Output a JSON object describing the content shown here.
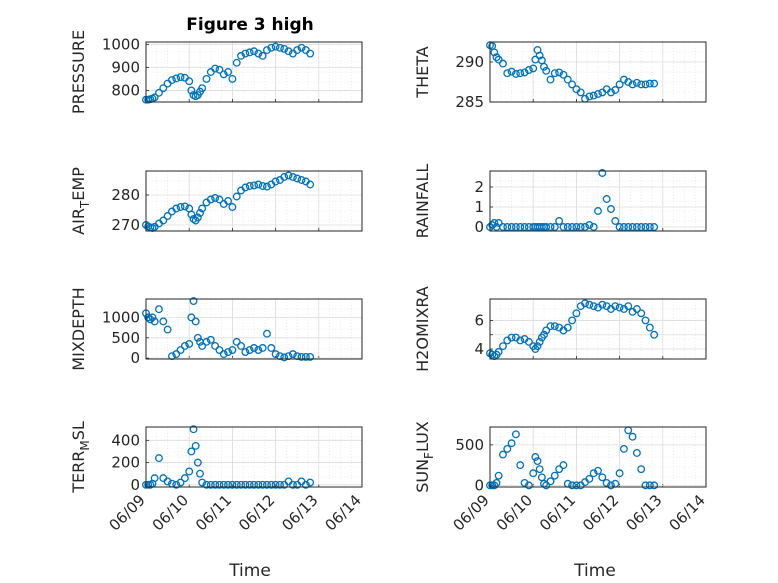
{
  "figure_title": "Figure 3 high",
  "time_label": "Time",
  "x_tick_labels": [
    "06/09",
    "06/10",
    "06/11",
    "06/12",
    "06/13",
    "06/14"
  ],
  "marker_color": "#0072BD",
  "chart_data": [
    {
      "type": "scatter",
      "id": "pressure",
      "ylabel": "PRESSURE",
      "ylabel_sub": "",
      "xlim": [
        0,
        5
      ],
      "ylim": [
        750,
        1010
      ],
      "yticks": [
        800,
        900,
        1000
      ],
      "yticklabels": [
        "800",
        "900",
        "1000"
      ],
      "x": [
        0.0,
        0.05,
        0.1,
        0.15,
        0.2,
        0.3,
        0.4,
        0.5,
        0.6,
        0.7,
        0.8,
        0.9,
        1.0,
        1.05,
        1.1,
        1.15,
        1.2,
        1.25,
        1.3,
        1.4,
        1.5,
        1.6,
        1.7,
        1.8,
        1.9,
        2.0,
        2.1,
        2.2,
        2.3,
        2.4,
        2.5,
        2.6,
        2.7,
        2.8,
        2.9,
        3.0,
        3.1,
        3.2,
        3.3,
        3.4,
        3.5,
        3.6,
        3.7,
        3.8
      ],
      "y": [
        760,
        760,
        762,
        765,
        770,
        790,
        810,
        830,
        845,
        852,
        858,
        855,
        840,
        800,
        780,
        775,
        780,
        795,
        810,
        850,
        880,
        895,
        890,
        870,
        880,
        850,
        920,
        950,
        960,
        965,
        970,
        960,
        950,
        975,
        985,
        990,
        985,
        980,
        970,
        960,
        975,
        985,
        975,
        960
      ]
    },
    {
      "type": "scatter",
      "id": "theta",
      "ylabel": "THETA",
      "ylabel_sub": "",
      "xlim": [
        0,
        5
      ],
      "ylim": [
        285,
        292.5
      ],
      "yticks": [
        285,
        290
      ],
      "yticklabels": [
        "285",
        "290"
      ],
      "x": [
        0.0,
        0.05,
        0.1,
        0.15,
        0.2,
        0.3,
        0.4,
        0.5,
        0.6,
        0.7,
        0.8,
        0.9,
        1.0,
        1.05,
        1.1,
        1.15,
        1.2,
        1.25,
        1.3,
        1.4,
        1.5,
        1.6,
        1.7,
        1.8,
        1.9,
        2.0,
        2.1,
        2.2,
        2.3,
        2.4,
        2.5,
        2.6,
        2.7,
        2.8,
        2.9,
        3.0,
        3.1,
        3.2,
        3.3,
        3.4,
        3.5,
        3.6,
        3.7,
        3.8
      ],
      "y": [
        292.1,
        292.0,
        291.2,
        290.6,
        290.3,
        289.8,
        288.6,
        288.8,
        288.5,
        288.6,
        288.7,
        289.0,
        289.2,
        290.3,
        291.5,
        290.8,
        290.2,
        289.4,
        288.9,
        287.8,
        288.6,
        288.7,
        288.4,
        287.8,
        287.2,
        286.6,
        286.2,
        285.4,
        285.7,
        285.8,
        286.0,
        286.2,
        286.6,
        286.2,
        286.5,
        287.2,
        287.8,
        287.5,
        287.2,
        287.4,
        287.2,
        287.2,
        287.3,
        287.3
      ]
    },
    {
      "type": "scatter",
      "id": "air_temp",
      "ylabel": "AIR",
      "ylabel_sub": "T",
      "ylabel_rest": "EMP",
      "xlim": [
        0,
        5
      ],
      "ylim": [
        268,
        288
      ],
      "yticks": [
        270,
        280
      ],
      "yticklabels": [
        "270",
        "280"
      ],
      "x": [
        0.0,
        0.05,
        0.1,
        0.15,
        0.2,
        0.3,
        0.4,
        0.5,
        0.6,
        0.7,
        0.8,
        0.9,
        1.0,
        1.05,
        1.1,
        1.15,
        1.2,
        1.25,
        1.3,
        1.4,
        1.5,
        1.6,
        1.7,
        1.8,
        1.9,
        2.0,
        2.1,
        2.2,
        2.3,
        2.4,
        2.5,
        2.6,
        2.7,
        2.8,
        2.9,
        3.0,
        3.1,
        3.2,
        3.3,
        3.4,
        3.5,
        3.6,
        3.7,
        3.8
      ],
      "y": [
        270,
        269.5,
        269.2,
        269,
        269.4,
        270.5,
        271.5,
        273,
        274.5,
        275.5,
        276,
        276.2,
        275.5,
        273.5,
        272,
        271.5,
        272.5,
        274,
        275.5,
        277.5,
        278.5,
        279,
        278.5,
        277,
        278,
        276,
        279.5,
        281.5,
        282.5,
        283,
        283.2,
        283.5,
        283,
        282.8,
        283.5,
        284.5,
        285,
        286,
        286.5,
        286,
        285.5,
        285,
        284.5,
        283.5
      ]
    },
    {
      "type": "scatter",
      "id": "rainfall",
      "ylabel": "RAINFALL",
      "ylabel_sub": "",
      "xlim": [
        0,
        5
      ],
      "ylim": [
        -0.2,
        2.8
      ],
      "yticks": [
        0,
        1,
        2
      ],
      "yticklabels": [
        "0",
        "1",
        "2"
      ],
      "x": [
        0.0,
        0.05,
        0.1,
        0.15,
        0.2,
        0.3,
        0.4,
        0.5,
        0.6,
        0.7,
        0.8,
        0.9,
        1.0,
        1.05,
        1.1,
        1.15,
        1.2,
        1.25,
        1.3,
        1.4,
        1.5,
        1.6,
        1.7,
        1.8,
        1.9,
        2.0,
        2.1,
        2.2,
        2.3,
        2.4,
        2.5,
        2.6,
        2.7,
        2.8,
        2.9,
        3.0,
        3.1,
        3.2,
        3.3,
        3.4,
        3.5,
        3.6,
        3.7,
        3.8
      ],
      "y": [
        0,
        0.1,
        0.2,
        0,
        0.2,
        0,
        0,
        0,
        0,
        0,
        0,
        0,
        0,
        0,
        0,
        0,
        0,
        0,
        0,
        0,
        0,
        0.3,
        0,
        0,
        0,
        0,
        0,
        0,
        0.1,
        0,
        0.8,
        2.7,
        1.4,
        0.9,
        0.3,
        0,
        0,
        0,
        0,
        0,
        0,
        0,
        0,
        0
      ]
    },
    {
      "type": "scatter",
      "id": "mixdepth",
      "ylabel": "MIXDEPTH",
      "ylabel_sub": "",
      "xlim": [
        0,
        5
      ],
      "ylim": [
        -20,
        1450
      ],
      "yticks": [
        0,
        500,
        1000
      ],
      "yticklabels": [
        "0",
        "500",
        "1000"
      ],
      "x": [
        0.0,
        0.05,
        0.1,
        0.15,
        0.2,
        0.3,
        0.4,
        0.5,
        0.6,
        0.7,
        0.8,
        0.9,
        1.0,
        1.05,
        1.1,
        1.15,
        1.2,
        1.25,
        1.3,
        1.4,
        1.5,
        1.6,
        1.7,
        1.8,
        1.9,
        2.0,
        2.1,
        2.2,
        2.3,
        2.4,
        2.5,
        2.6,
        2.7,
        2.8,
        2.9,
        3.0,
        3.1,
        3.2,
        3.3,
        3.4,
        3.5,
        3.6,
        3.7,
        3.8
      ],
      "y": [
        1100,
        1000,
        950,
        1000,
        900,
        1200,
        900,
        700,
        50,
        100,
        200,
        300,
        350,
        1000,
        1400,
        900,
        500,
        400,
        300,
        400,
        450,
        300,
        200,
        100,
        150,
        200,
        400,
        300,
        150,
        200,
        250,
        200,
        250,
        600,
        250,
        100,
        50,
        20,
        50,
        100,
        50,
        30,
        30,
        30
      ]
    },
    {
      "type": "scatter",
      "id": "h2omixra",
      "ylabel": "H2OMIXRA",
      "ylabel_sub": "",
      "xlim": [
        0,
        5
      ],
      "ylim": [
        3.3,
        7.5
      ],
      "yticks": [
        4,
        5,
        6
      ],
      "yticklabels": [
        "4",
        "",
        "6"
      ],
      "x": [
        0.0,
        0.05,
        0.1,
        0.15,
        0.2,
        0.3,
        0.4,
        0.5,
        0.6,
        0.7,
        0.8,
        0.9,
        1.0,
        1.05,
        1.1,
        1.15,
        1.2,
        1.25,
        1.3,
        1.4,
        1.5,
        1.6,
        1.7,
        1.8,
        1.9,
        2.0,
        2.1,
        2.2,
        2.3,
        2.4,
        2.5,
        2.6,
        2.7,
        2.8,
        2.9,
        3.0,
        3.1,
        3.2,
        3.3,
        3.4,
        3.5,
        3.6,
        3.7,
        3.8
      ],
      "y": [
        3.7,
        3.6,
        3.5,
        3.6,
        3.8,
        4.2,
        4.6,
        4.8,
        4.8,
        4.6,
        4.7,
        4.5,
        4.2,
        4.0,
        4.2,
        4.5,
        4.8,
        5.0,
        5.3,
        5.6,
        5.6,
        5.5,
        5.3,
        5.5,
        6.0,
        6.5,
        7.0,
        7.2,
        7.1,
        7.0,
        6.9,
        7.1,
        7.0,
        6.8,
        7.0,
        6.9,
        6.8,
        7.0,
        6.6,
        6.8,
        6.5,
        6.0,
        5.5,
        5.0
      ]
    },
    {
      "type": "scatter",
      "id": "terr_msl",
      "ylabel": "TERR",
      "ylabel_sub": "M",
      "ylabel_rest": "SL",
      "xlim": [
        0,
        5
      ],
      "ylim": [
        -20,
        520
      ],
      "yticks": [
        0,
        200,
        400
      ],
      "yticklabels": [
        "0",
        "200",
        "400"
      ],
      "x": [
        0.0,
        0.05,
        0.1,
        0.15,
        0.2,
        0.3,
        0.4,
        0.5,
        0.6,
        0.7,
        0.8,
        0.9,
        1.0,
        1.05,
        1.1,
        1.15,
        1.2,
        1.25,
        1.3,
        1.4,
        1.5,
        1.6,
        1.7,
        1.8,
        1.9,
        2.0,
        2.1,
        2.2,
        2.3,
        2.4,
        2.5,
        2.6,
        2.7,
        2.8,
        2.9,
        3.0,
        3.1,
        3.2,
        3.3,
        3.4,
        3.5,
        3.6,
        3.7,
        3.8
      ],
      "y": [
        0,
        0,
        0,
        10,
        60,
        240,
        60,
        30,
        10,
        0,
        20,
        60,
        120,
        300,
        500,
        350,
        200,
        100,
        20,
        0,
        0,
        0,
        0,
        0,
        0,
        0,
        0,
        0,
        0,
        0,
        0,
        0,
        0,
        0,
        0,
        0,
        0,
        0,
        30,
        0,
        0,
        30,
        0,
        20
      ]
    },
    {
      "type": "scatter",
      "id": "sun_flux",
      "ylabel": "SUN",
      "ylabel_sub": "F",
      "ylabel_rest": "LUX",
      "xlim": [
        0,
        5
      ],
      "ylim": [
        -20,
        720
      ],
      "yticks": [
        0,
        500
      ],
      "yticklabels": [
        "0",
        "500"
      ],
      "x": [
        0.0,
        0.05,
        0.1,
        0.15,
        0.2,
        0.3,
        0.4,
        0.5,
        0.6,
        0.7,
        0.8,
        0.9,
        1.0,
        1.05,
        1.1,
        1.15,
        1.2,
        1.25,
        1.3,
        1.4,
        1.5,
        1.6,
        1.7,
        1.8,
        1.9,
        2.0,
        2.1,
        2.2,
        2.3,
        2.4,
        2.5,
        2.6,
        2.7,
        2.8,
        2.9,
        3.0,
        3.1,
        3.2,
        3.3,
        3.4,
        3.5,
        3.6,
        3.7,
        3.8
      ],
      "y": [
        0,
        0,
        0,
        30,
        120,
        380,
        450,
        520,
        630,
        250,
        30,
        0,
        150,
        350,
        300,
        200,
        100,
        20,
        0,
        50,
        120,
        200,
        250,
        20,
        0,
        0,
        0,
        40,
        80,
        150,
        180,
        100,
        30,
        0,
        20,
        150,
        450,
        680,
        600,
        400,
        200,
        0,
        0,
        0
      ]
    }
  ]
}
